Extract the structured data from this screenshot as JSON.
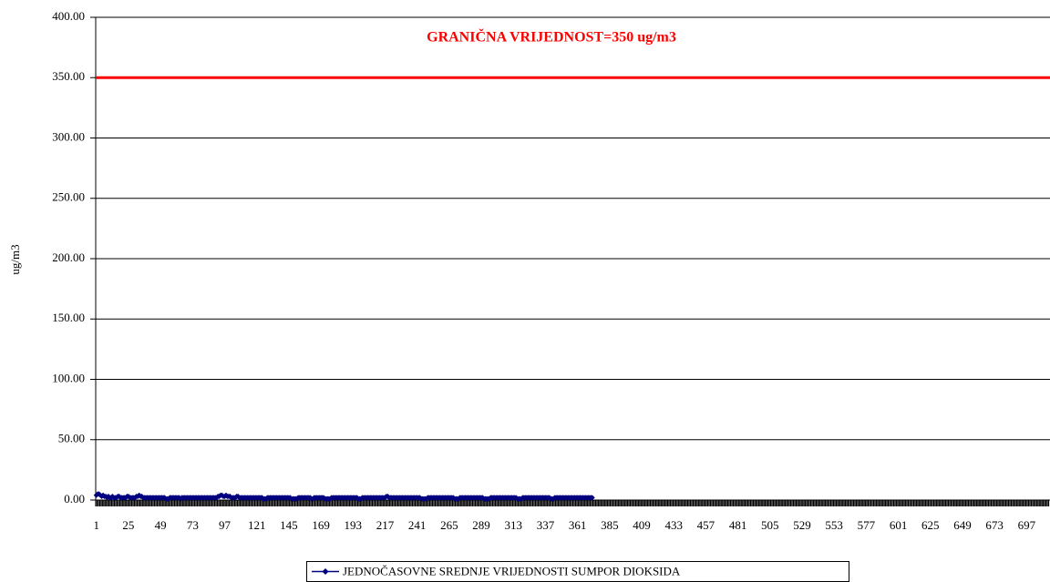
{
  "chart_data": {
    "type": "line",
    "y_label": "ug/m3",
    "reference_line": {
      "value": 350,
      "color": "#ff0000",
      "label": "GRANIČNA VRIJEDNOST=350 ug/m3"
    },
    "ylim": [
      0,
      400
    ],
    "yticks": [
      {
        "value": 0,
        "label": "0.00"
      },
      {
        "value": 50,
        "label": "50.00"
      },
      {
        "value": 100,
        "label": "100.00"
      },
      {
        "value": 150,
        "label": "150.00"
      },
      {
        "value": 200,
        "label": "200.00"
      },
      {
        "value": 250,
        "label": "250.00"
      },
      {
        "value": 300,
        "label": "300.00"
      },
      {
        "value": 350,
        "label": "350.00"
      },
      {
        "value": 400,
        "label": "400.00"
      }
    ],
    "grid": true,
    "legend": "bottom",
    "categories": [
      "1",
      null,
      null,
      null,
      null,
      null,
      null,
      null,
      null,
      null,
      null,
      null,
      null,
      null,
      null,
      null,
      null,
      null,
      null,
      null,
      null,
      null,
      null,
      null,
      "25",
      null,
      null,
      null,
      null,
      null,
      null,
      null,
      null,
      null,
      null,
      null,
      null,
      null,
      null,
      null,
      null,
      null,
      null,
      null,
      null,
      null,
      null,
      null,
      "49",
      null,
      null,
      null,
      null,
      null,
      null,
      null,
      null,
      null,
      null,
      null,
      null,
      null,
      null,
      null,
      null,
      null,
      null,
      null,
      null,
      null,
      null,
      null,
      "73",
      null,
      null,
      null,
      null,
      null,
      null,
      null,
      null,
      null,
      null,
      null,
      null,
      null,
      null,
      null,
      null,
      null,
      null,
      null,
      null,
      null,
      null,
      null,
      "97",
      null,
      null,
      null,
      null,
      null,
      null,
      null,
      null,
      null,
      null,
      null,
      null,
      null,
      null,
      null,
      null,
      null,
      null,
      null,
      null,
      null,
      null,
      null,
      "121",
      null,
      null,
      null,
      null,
      null,
      null,
      null,
      null,
      null,
      null,
      null,
      null,
      null,
      null,
      null,
      null,
      null,
      null,
      null,
      null,
      null,
      null,
      null,
      "145",
      null,
      null,
      null,
      null,
      null,
      null,
      null,
      null,
      null,
      null,
      null,
      null,
      null,
      null,
      null,
      null,
      null,
      null,
      null,
      null,
      null,
      null,
      null,
      "169",
      null,
      null,
      null,
      null,
      null,
      null,
      null,
      null,
      null,
      null,
      null,
      null,
      null,
      null,
      null,
      null,
      null,
      null,
      null,
      null,
      null,
      null,
      null,
      "193",
      null,
      null,
      null,
      null,
      null,
      null,
      null,
      null,
      null,
      null,
      null,
      null,
      null,
      null,
      null,
      null,
      null,
      null,
      null,
      null,
      null,
      null,
      null,
      "217",
      null,
      null,
      null,
      null,
      null,
      null,
      null,
      null,
      null,
      null,
      null,
      null,
      null,
      null,
      null,
      null,
      null,
      null,
      null,
      null,
      null,
      null,
      null,
      "241",
      null,
      null,
      null,
      null,
      null,
      null,
      null,
      null,
      null,
      null,
      null,
      null,
      null,
      null,
      null,
      null,
      null,
      null,
      null,
      null,
      null,
      null,
      null,
      "265",
      null,
      null,
      null,
      null,
      null,
      null,
      null,
      null,
      null,
      null,
      null,
      null,
      null,
      null,
      null,
      null,
      null,
      null,
      null,
      null,
      null,
      null,
      null,
      "289",
      null,
      null,
      null,
      null,
      null,
      null,
      null,
      null,
      null,
      null,
      null,
      null,
      null,
      null,
      null,
      null,
      null,
      null,
      null,
      null,
      null,
      null,
      null,
      "313",
      null,
      null,
      null,
      null,
      null,
      null,
      null,
      null,
      null,
      null,
      null,
      null,
      null,
      null,
      null,
      null,
      null,
      null,
      null,
      null,
      null,
      null,
      null,
      "337",
      null,
      null,
      null,
      null,
      null,
      null,
      null,
      null,
      null,
      null,
      null,
      null,
      null,
      null,
      null,
      null,
      null,
      null,
      null,
      null,
      null,
      null,
      null,
      "361",
      null,
      null,
      null,
      null,
      null,
      null,
      null,
      null,
      null,
      null,
      null,
      null,
      null,
      null,
      null,
      null,
      null,
      null,
      null,
      null,
      null,
      null,
      null,
      "385",
      null,
      null,
      null,
      null,
      null,
      null,
      null,
      null,
      null,
      null,
      null,
      null,
      null,
      null,
      null,
      null,
      null,
      null,
      null,
      null,
      null,
      null,
      null,
      "409",
      null,
      null,
      null,
      null,
      null,
      null,
      null,
      null,
      null,
      null,
      null,
      null,
      null,
      null,
      null,
      null,
      null,
      null,
      null,
      null,
      null,
      null,
      null,
      "433",
      null,
      null,
      null,
      null,
      null,
      null,
      null,
      null,
      null,
      null,
      null,
      null,
      null,
      null,
      null,
      null,
      null,
      null,
      null,
      null,
      null,
      null,
      null,
      "457",
      null,
      null,
      null,
      null,
      null,
      null,
      null,
      null,
      null,
      null,
      null,
      null,
      null,
      null,
      null,
      null,
      null,
      null,
      null,
      null,
      null,
      null,
      null,
      "481",
      null,
      null,
      null,
      null,
      null,
      null,
      null,
      null,
      null,
      null,
      null,
      null,
      null,
      null,
      null,
      null,
      null,
      null,
      null,
      null,
      null,
      null,
      null,
      "505",
      null,
      null,
      null,
      null,
      null,
      null,
      null,
      null,
      null,
      null,
      null,
      null,
      null,
      null,
      null,
      null,
      null,
      null,
      null,
      null,
      null,
      null,
      null,
      "529",
      null,
      null,
      null,
      null,
      null,
      null,
      null,
      null,
      null,
      null,
      null,
      null,
      null,
      null,
      null,
      null,
      null,
      null,
      null,
      null,
      null,
      null,
      null,
      "553",
      null,
      null,
      null,
      null,
      null,
      null,
      null,
      null,
      null,
      null,
      null,
      null,
      null,
      null,
      null,
      null,
      null,
      null,
      null,
      null,
      null,
      null,
      null,
      "577",
      null,
      null,
      null,
      null,
      null,
      null,
      null,
      null,
      null,
      null,
      null,
      null,
      null,
      null,
      null,
      null,
      null,
      null,
      null,
      null,
      null,
      null,
      null,
      "601",
      null,
      null,
      null,
      null,
      null,
      null,
      null,
      null,
      null,
      null,
      null,
      null,
      null,
      null,
      null,
      null,
      null,
      null,
      null,
      null,
      null,
      null,
      null,
      "625",
      null,
      null,
      null,
      null,
      null,
      null,
      null,
      null,
      null,
      null,
      null,
      null,
      null,
      null,
      null,
      null,
      null,
      null,
      null,
      null,
      null,
      null,
      null,
      "649",
      null,
      null,
      null,
      null,
      null,
      null,
      null,
      null,
      null,
      null,
      null,
      null,
      null,
      null,
      null,
      null,
      null,
      null,
      null,
      null,
      null,
      null,
      null,
      "673",
      null,
      null,
      null,
      null,
      null,
      null,
      null,
      null,
      null,
      null,
      null,
      null,
      null,
      null,
      null,
      null,
      null,
      null,
      null,
      null,
      null,
      null,
      null,
      "697",
      null,
      null,
      null,
      null,
      null,
      null,
      null,
      null,
      null,
      null,
      null,
      null,
      null,
      null,
      null,
      null,
      null
    ],
    "series": [
      {
        "name": "JEDNOČASOVNE SREDNJE VRIJEDNOSTI SUMPOR DIOKSIDA",
        "color": "#000080",
        "values": [
          4,
          5,
          5,
          4,
          3,
          4,
          3,
          3,
          2,
          3,
          2,
          2,
          3,
          2,
          2,
          2,
          3,
          3,
          2,
          2,
          2,
          2,
          2,
          3,
          3,
          2,
          2,
          2,
          2,
          2,
          3,
          3,
          4,
          3,
          3,
          2,
          2,
          2,
          2,
          2,
          2,
          2,
          2,
          2,
          2,
          2,
          2,
          2,
          2,
          2,
          2,
          2,
          1,
          1,
          1,
          2,
          2,
          2,
          2,
          2,
          2,
          2,
          2,
          1,
          2,
          2,
          2,
          2,
          2,
          2,
          2,
          2,
          2,
          2,
          2,
          2,
          2,
          2,
          2,
          2,
          2,
          2,
          2,
          2,
          2,
          2,
          2,
          2,
          2,
          2,
          2,
          3,
          3,
          4,
          4,
          3,
          3,
          4,
          3,
          3,
          3,
          2,
          2,
          2,
          2,
          3,
          3,
          2,
          2,
          2,
          2,
          2,
          2,
          2,
          2,
          2,
          2,
          2,
          2,
          2,
          2,
          2,
          2,
          2,
          2,
          1,
          1,
          1,
          2,
          2,
          2,
          2,
          2,
          2,
          2,
          2,
          2,
          2,
          2,
          2,
          2,
          2,
          2,
          2,
          2,
          2,
          1,
          1,
          1,
          1,
          1,
          2,
          2,
          2,
          2,
          2,
          2,
          2,
          2,
          2,
          2,
          1,
          1,
          2,
          2,
          2,
          2,
          2,
          2,
          2,
          2,
          1,
          1,
          1,
          1,
          1,
          2,
          2,
          2,
          2,
          2,
          2,
          2,
          2,
          2,
          2,
          2,
          2,
          2,
          2,
          2,
          2,
          2,
          2,
          2,
          2,
          1,
          1,
          1,
          2,
          2,
          2,
          2,
          2,
          2,
          2,
          2,
          2,
          2,
          2,
          2,
          2,
          2,
          2,
          2,
          2,
          2,
          3,
          3,
          2,
          2,
          2,
          2,
          2,
          2,
          2,
          2,
          2,
          2,
          2,
          2,
          2,
          2,
          2,
          2,
          2,
          2,
          2,
          2,
          2,
          2,
          2,
          2,
          1,
          1,
          1,
          1,
          1,
          2,
          2,
          2,
          2,
          2,
          2,
          2,
          2,
          2,
          2,
          2,
          2,
          2,
          2,
          2,
          2,
          2,
          2,
          2,
          2,
          1,
          1,
          1,
          1,
          2,
          2,
          2,
          2,
          2,
          2,
          2,
          2,
          2,
          2,
          2,
          2,
          2,
          2,
          2,
          2,
          2,
          2,
          1,
          1,
          1,
          1,
          1,
          2,
          2,
          2,
          2,
          2,
          2,
          2,
          2,
          2,
          2,
          2,
          2,
          2,
          2,
          2,
          2,
          2,
          2,
          2,
          2,
          1,
          1,
          1,
          1,
          2,
          2,
          2,
          2,
          2,
          2,
          2,
          2,
          2,
          2,
          2,
          2,
          2,
          2,
          2,
          2,
          2,
          2,
          2,
          2,
          2,
          1,
          1,
          1,
          2,
          2,
          2,
          2,
          2,
          2,
          2,
          2,
          2,
          2,
          2,
          2,
          2,
          2,
          2,
          2,
          2,
          2,
          2,
          2,
          2,
          2,
          2,
          2,
          2,
          2,
          2,
          2,
          2,
          null,
          null,
          null,
          null,
          null,
          null,
          null,
          null,
          null,
          null,
          null,
          null,
          null,
          null,
          null,
          null,
          null,
          null,
          null,
          null,
          null,
          null,
          null,
          null,
          null,
          null,
          null,
          null,
          null,
          null,
          null,
          null,
          null,
          null,
          null,
          null,
          null,
          null,
          null,
          null,
          null,
          null,
          null,
          null,
          null,
          null,
          null,
          null,
          null,
          null,
          null,
          null,
          null,
          null,
          null,
          null,
          null,
          null,
          null,
          null,
          null,
          null,
          null,
          null,
          null,
          null,
          null,
          null,
          null,
          null,
          null,
          null,
          null,
          null,
          null,
          null,
          null,
          null,
          null,
          null,
          null,
          null,
          null,
          null,
          null,
          null,
          null,
          null,
          null,
          null,
          null,
          null,
          null,
          null,
          null,
          null,
          null,
          null,
          null,
          null,
          null,
          null,
          null,
          null,
          null,
          null,
          null,
          null,
          null,
          null,
          null,
          null,
          null,
          null,
          null,
          null,
          null,
          null,
          null,
          null,
          null,
          null,
          null,
          null,
          null,
          null,
          null,
          null,
          null,
          null,
          null,
          null,
          null,
          null,
          null,
          null,
          null,
          null,
          null,
          null,
          null,
          null,
          null,
          null,
          null,
          null,
          null,
          null,
          null,
          null,
          null,
          null,
          null,
          null,
          null,
          null,
          null,
          null,
          null,
          null,
          null,
          null,
          null,
          null,
          null,
          null,
          null,
          null,
          null,
          null,
          null,
          null,
          null,
          null,
          null,
          null,
          null,
          null,
          null,
          null,
          null,
          null,
          null,
          null,
          null,
          null,
          null,
          null,
          null,
          null,
          null,
          null,
          null,
          null,
          null,
          null,
          null,
          null,
          null,
          null,
          null,
          null,
          null,
          null,
          null,
          null,
          null,
          null,
          null,
          null,
          null,
          null,
          null,
          null,
          null,
          null,
          null,
          null,
          null,
          null,
          null,
          null,
          null,
          null,
          null,
          null,
          null,
          null,
          null,
          null,
          null,
          null,
          null,
          null,
          null,
          null,
          null,
          null,
          null,
          null,
          null,
          null,
          null,
          null,
          null,
          null,
          null,
          null,
          null,
          null,
          null,
          null,
          null,
          null,
          null,
          null,
          null,
          null,
          null,
          null,
          null,
          null,
          null,
          null,
          null,
          null,
          null,
          null,
          null,
          null,
          null,
          null,
          null,
          null,
          null,
          null,
          null,
          null,
          null,
          null,
          null,
          null,
          null,
          null,
          null,
          null,
          null,
          null,
          null,
          null,
          null,
          null,
          null,
          null,
          null,
          null,
          null,
          null,
          null,
          null,
          null,
          null,
          null,
          null,
          null,
          null,
          null,
          null,
          null,
          null,
          null,
          null,
          null,
          null,
          null,
          null,
          null,
          null,
          null,
          null,
          null,
          null,
          null,
          null,
          null,
          null,
          null,
          null,
          null,
          null,
          null,
          null,
          null,
          null,
          null,
          null,
          null,
          null,
          null,
          null,
          null,
          null
        ]
      }
    ]
  }
}
